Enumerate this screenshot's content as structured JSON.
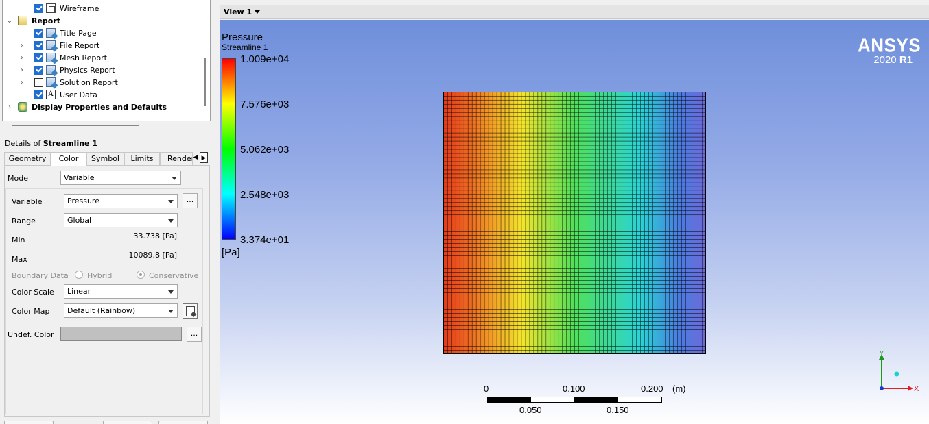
{
  "tree": {
    "items": [
      {
        "label": "Wireframe",
        "checked": true,
        "expandable": false,
        "icon": "wireframe-icon",
        "bold": false
      },
      {
        "label": "Report",
        "checked": null,
        "expandable": true,
        "expanded": true,
        "icon": "report-folder-icon",
        "bold": true
      },
      {
        "label": "Title Page",
        "checked": true,
        "expandable": false,
        "icon": "report-page-icon",
        "bold": false
      },
      {
        "label": "File Report",
        "checked": true,
        "expandable": true,
        "icon": "report-page-icon",
        "bold": false
      },
      {
        "label": "Mesh Report",
        "checked": true,
        "expandable": true,
        "icon": "report-page-icon",
        "bold": false
      },
      {
        "label": "Physics Report",
        "checked": true,
        "expandable": true,
        "icon": "report-page-icon",
        "bold": false
      },
      {
        "label": "Solution Report",
        "checked": false,
        "expandable": true,
        "icon": "report-page-icon",
        "bold": false
      },
      {
        "label": "User Data",
        "checked": true,
        "expandable": false,
        "icon": "text-a-icon",
        "bold": false
      },
      {
        "label": "Display Properties and Defaults",
        "checked": null,
        "expandable": true,
        "expanded": false,
        "icon": "display-properties-icon",
        "bold": true
      }
    ]
  },
  "details": {
    "prefix": "Details of ",
    "object": "Streamline 1",
    "tabs": [
      "Geometry",
      "Color",
      "Symbol",
      "Limits",
      "Render"
    ],
    "active_tab": "Color",
    "mode_label": "Mode",
    "mode_value": "Variable",
    "variable_label": "Variable",
    "variable_value": "Pressure",
    "range_label": "Range",
    "range_value": "Global",
    "min_label": "Min",
    "min_value": "33.738 [Pa]",
    "max_label": "Max",
    "max_value": "10089.8 [Pa]",
    "boundary_label": "Boundary Data",
    "boundary_hybrid": "Hybrid",
    "boundary_conservative": "Conservative",
    "color_scale_label": "Color Scale",
    "color_scale_value": "Linear",
    "color_map_label": "Color Map",
    "color_map_value": "Default (Rainbow)",
    "undef_color_label": "Undef. Color",
    "undef_color_hex": "#c0c0c0",
    "ellipsis": "..."
  },
  "view": {
    "name": "View 1"
  },
  "legend": {
    "title": "Pressure",
    "subtitle": "Streamline 1",
    "labels": [
      "1.009e+04",
      "7.576e+03",
      "5.062e+03",
      "2.548e+03",
      "3.374e+01"
    ],
    "unit": "[Pa]",
    "colormap": [
      "#ff0000",
      "#ffff00",
      "#00ff00",
      "#00ffff",
      "#0000ff"
    ]
  },
  "logo": {
    "brand": "ANSYS",
    "year": "2020",
    "release": "R1"
  },
  "scale_bar": {
    "top_labels": [
      "0",
      "0.100",
      "0.200"
    ],
    "bottom_labels": [
      "0.050",
      "0.150"
    ],
    "unit": "(m)"
  },
  "axis_triad": {
    "x_label": "X",
    "y_label": "Y",
    "x_color": "#e02020",
    "y_color": "#1a9a1a",
    "z_color": "#1ad0d0"
  },
  "field": {
    "variable": "Pressure",
    "min": 33.738,
    "max": 10089.8,
    "mesh_cells": 64,
    "high_side": "left",
    "low_side": "right"
  }
}
